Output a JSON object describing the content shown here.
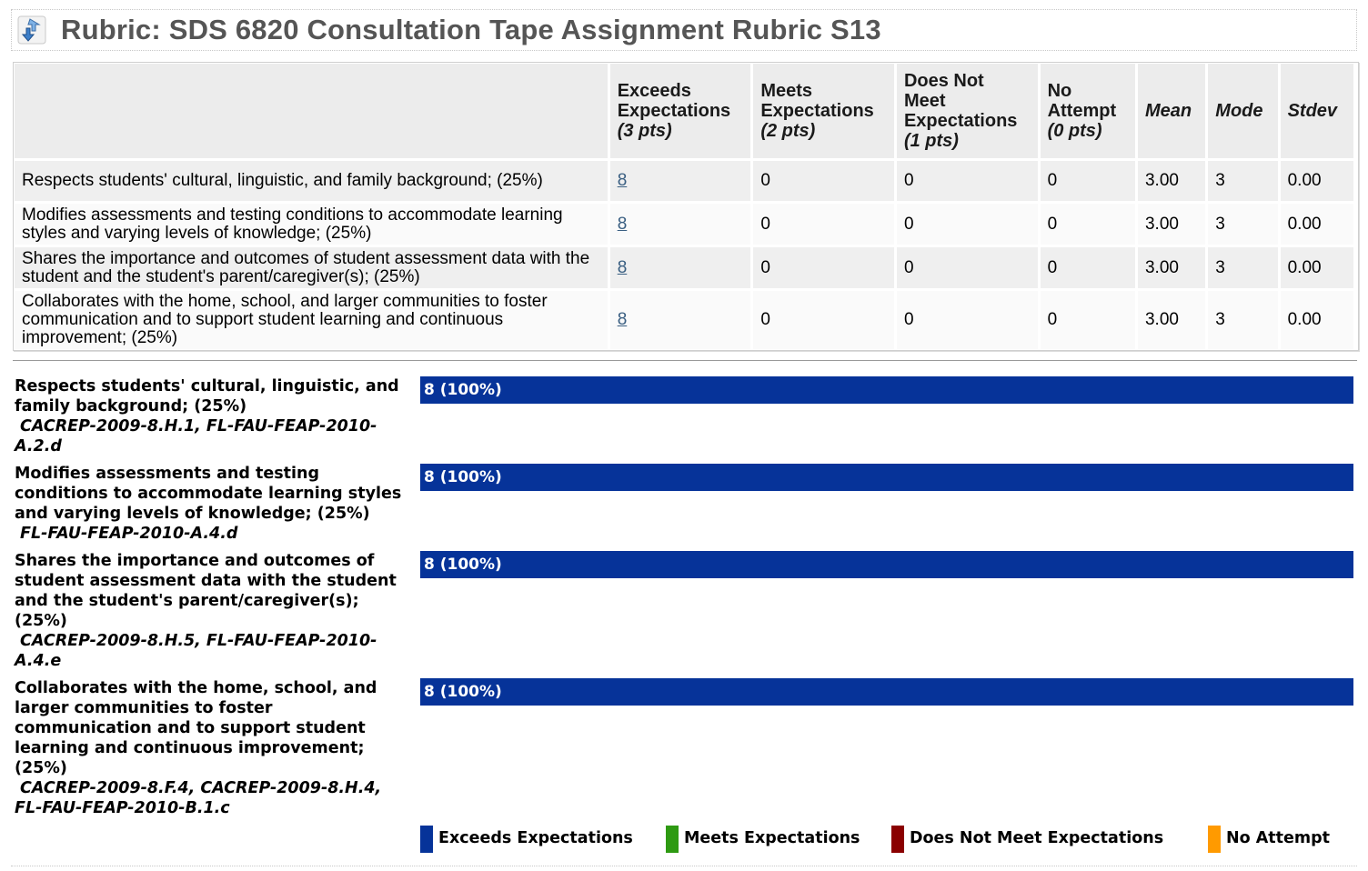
{
  "header": {
    "icon": "rubric-arrows-icon",
    "title": "Rubric: SDS 6820 Consultation Tape Assignment Rubric S13"
  },
  "table": {
    "columns": [
      {
        "name": "Exceeds Expectations",
        "pts": "(3 pts)"
      },
      {
        "name": "Meets Expectations",
        "pts": "(2 pts)"
      },
      {
        "name": "Does Not Meet Expectations",
        "pts": "(1 pts)"
      },
      {
        "name": "No Attempt",
        "pts": "(0 pts)"
      }
    ],
    "stat_headers": [
      "Mean",
      "Mode",
      "Stdev"
    ],
    "rows": [
      {
        "criterion": "Respects students' cultural, linguistic, and family background; (25%)",
        "exceeds": "8",
        "meets": "0",
        "does_not_meet": "0",
        "no_attempt": "0",
        "mean": "3.00",
        "mode": "3",
        "stdev": "0.00"
      },
      {
        "criterion": "Modifies assessments and testing conditions to accommodate learning styles and varying levels of knowledge; (25%)",
        "exceeds": "8",
        "meets": "0",
        "does_not_meet": "0",
        "no_attempt": "0",
        "mean": "3.00",
        "mode": "3",
        "stdev": "0.00"
      },
      {
        "criterion": "Shares the importance and outcomes of student assessment data with the student and the student's parent/caregiver(s); (25%)",
        "exceeds": "8",
        "meets": "0",
        "does_not_meet": "0",
        "no_attempt": "0",
        "mean": "3.00",
        "mode": "3",
        "stdev": "0.00"
      },
      {
        "criterion": "Collaborates with the home, school, and larger communities to foster communication and to support student learning and continuous improvement; (25%)",
        "exceeds": "8",
        "meets": "0",
        "does_not_meet": "0",
        "no_attempt": "0",
        "mean": "3.00",
        "mode": "3",
        "stdev": "0.00"
      }
    ]
  },
  "distribution": [
    {
      "criterion": "Respects students' cultural, linguistic, and family background; (25%)",
      "codes": "CACREP-2009-8.H.1, FL-FAU-FEAP-2010-A.2.d",
      "bar_label": "8 (100%)",
      "fraction": 1.0
    },
    {
      "criterion": "Modifies assessments and testing conditions to accommodate learning styles and varying levels of knowledge; (25%)",
      "codes": "FL-FAU-FEAP-2010-A.4.d",
      "bar_label": "8 (100%)",
      "fraction": 1.0
    },
    {
      "criterion": "Shares the importance and outcomes of student assessment data with the student and the student's parent/caregiver(s); (25%)",
      "codes": "CACREP-2009-8.H.5, FL-FAU-FEAP-2010-A.4.e",
      "bar_label": "8 (100%)",
      "fraction": 1.0
    },
    {
      "criterion": "Collaborates with the home, school, and larger communities to foster communication and to support student learning and continuous improvement; (25%)",
      "codes": "CACREP-2009-8.F.4, CACREP-2009-8.H.4, FL-FAU-FEAP-2010-B.1.c",
      "bar_label": "8 (100%)",
      "fraction": 1.0
    }
  ],
  "legend": [
    {
      "label": "Exceeds Expectations",
      "color": "#063399"
    },
    {
      "label": "Meets Expectations",
      "color": "#2e9a12"
    },
    {
      "label": "Does Not Meet Expectations",
      "color": "#8a0000"
    },
    {
      "label": "No Attempt",
      "color": "#ff9a00"
    }
  ]
}
